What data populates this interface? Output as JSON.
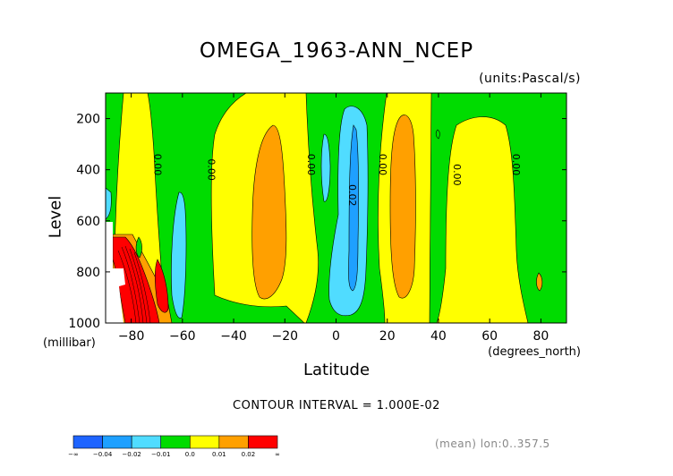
{
  "chart_data": {
    "type": "contour",
    "title": "OMEGA_1963-ANN_NCEP",
    "units": "(units:Pascal/s)",
    "xlabel": "Latitude",
    "xlabel_units": "(degrees_north)",
    "ylabel": "Level",
    "ylabel_units": "(millibar)",
    "xlim": [
      -90,
      90
    ],
    "ylim": [
      1000,
      100
    ],
    "xticks": [
      -80,
      -60,
      -40,
      -20,
      0,
      20,
      40,
      60,
      80
    ],
    "yticks": [
      200,
      400,
      600,
      800,
      1000
    ],
    "contour_interval": "CONTOUR INTERVAL = 1.000E-02",
    "footer": "(mean) lon:0..357.5",
    "contour_labels": [
      {
        "text": "0.00",
        "lat": -71,
        "lev": 380
      },
      {
        "text": "0.00",
        "lat": -50,
        "lev": 400
      },
      {
        "text": "0.00",
        "lat": -11,
        "lev": 380
      },
      {
        "text": "0.02",
        "lat": 5,
        "lev": 500
      },
      {
        "text": "0.00",
        "lat": 17,
        "lev": 380
      },
      {
        "text": "0.00",
        "lat": 46,
        "lev": 420
      },
      {
        "text": "0.00",
        "lat": 69,
        "lev": 380
      }
    ],
    "legend": {
      "levels": [
        "-∞",
        "-0.04",
        "-0.02",
        "-0.01",
        "0.0",
        "0.01",
        "0.02",
        "∞"
      ],
      "colors": [
        "#1e64ff",
        "#1ea0ff",
        "#50dcff",
        "#00dc00",
        "#ffff00",
        "#ffa000",
        "#ff0000"
      ]
    }
  }
}
